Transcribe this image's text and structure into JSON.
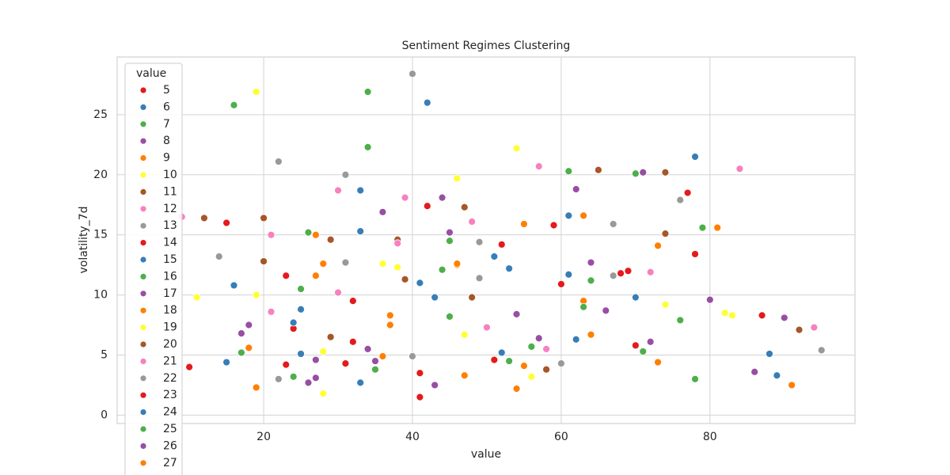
{
  "chart_data": {
    "type": "scatter",
    "title": "Sentiment Regimes Clustering",
    "xlabel": "value",
    "ylabel": "volatility_7d",
    "legend_title": "value",
    "xlim": [
      0.3,
      99.5
    ],
    "ylim": [
      -0.7,
      29.8
    ],
    "xticks": [
      20,
      40,
      60,
      80
    ],
    "yticks": [
      0,
      5,
      10,
      15,
      20,
      25
    ],
    "grid": true,
    "legend": "upper left",
    "series": [
      {
        "name": "5",
        "color": "#e41a1c",
        "x": [
          15,
          23,
          32,
          41,
          59,
          68,
          77
        ],
        "values": [
          16,
          4.2,
          6.1,
          3.5,
          15.8,
          11.8,
          18.5
        ]
      },
      {
        "name": "6",
        "color": "#377eb8",
        "x": [
          16,
          25,
          33,
          42,
          51,
          61,
          78
        ],
        "values": [
          10.8,
          5.1,
          18.7,
          26,
          13.2,
          16.6,
          21.5
        ]
      },
      {
        "name": "7",
        "color": "#4daf4a",
        "x": [
          16,
          24,
          34,
          44,
          61,
          70,
          79
        ],
        "values": [
          25.8,
          3.2,
          26.9,
          12.1,
          20.3,
          20.1,
          15.6
        ]
      },
      {
        "name": "8",
        "color": "#984ea3",
        "x": [
          18,
          27,
          36,
          44,
          62,
          71,
          90
        ],
        "values": [
          7.5,
          4.6,
          16.9,
          18.1,
          18.8,
          20.2,
          8.1
        ]
      },
      {
        "name": "9",
        "color": "#ff7f00",
        "x": [
          18,
          27,
          37,
          47,
          55,
          63,
          81
        ],
        "values": [
          5.6,
          15,
          8.3,
          3.3,
          15.9,
          16.6,
          15.6
        ]
      },
      {
        "name": "10",
        "color": "#ffff33",
        "x": [
          11,
          19,
          28,
          36,
          46,
          54,
          83
        ],
        "values": [
          9.8,
          26.9,
          5.3,
          12.6,
          19.7,
          22.2,
          8.3
        ]
      },
      {
        "name": "11",
        "color": "#a65628",
        "x": [
          12,
          20,
          29,
          38,
          47,
          65,
          74
        ],
        "values": [
          16.4,
          16.4,
          14.6,
          14.6,
          17.3,
          20.4,
          20.2
        ]
      },
      {
        "name": "12",
        "color": "#f781bf",
        "x": [
          9,
          21,
          30,
          39,
          48,
          57,
          84
        ],
        "values": [
          16.5,
          15,
          18.7,
          18.1,
          16.1,
          20.7,
          20.5
        ]
      },
      {
        "name": "13",
        "color": "#999999",
        "x": [
          14,
          22,
          31,
          40,
          49,
          67,
          76
        ],
        "values": [
          13.2,
          21.1,
          20,
          28.4,
          14.4,
          15.9,
          17.9
        ]
      },
      {
        "name": "14",
        "color": "#e41a1c",
        "x": [
          10,
          24,
          32,
          42,
          52,
          69,
          78
        ],
        "values": [
          4,
          7.2,
          9.5,
          17.4,
          14.2,
          12,
          13.4
        ]
      },
      {
        "name": "15",
        "color": "#377eb8",
        "x": [
          15,
          25,
          33,
          43,
          53,
          62,
          88
        ],
        "values": [
          4.4,
          8.8,
          15.3,
          9.8,
          12.2,
          6.3,
          5.1
        ]
      },
      {
        "name": "16",
        "color": "#4daf4a",
        "x": [
          17,
          26,
          35,
          45,
          56,
          64,
          76
        ],
        "values": [
          5.2,
          15.2,
          3.8,
          8.2,
          5.7,
          11.2,
          7.9
        ]
      },
      {
        "name": "17",
        "color": "#984ea3",
        "x": [
          17,
          27,
          35,
          43,
          57,
          66,
          80
        ],
        "values": [
          6.8,
          3.1,
          4.5,
          2.5,
          6.4,
          8.7,
          9.6
        ]
      },
      {
        "name": "18",
        "color": "#ff7f00",
        "x": [
          19,
          28,
          37,
          46,
          55,
          63,
          73
        ],
        "values": [
          2.3,
          12.6,
          7.5,
          12.5,
          4.1,
          9.5,
          14.1
        ]
      },
      {
        "name": "19",
        "color": "#ffff33",
        "x": [
          19,
          28,
          38,
          47,
          56,
          74,
          82
        ],
        "values": [
          10,
          1.8,
          12.3,
          6.7,
          3.2,
          9.2,
          8.5
        ]
      },
      {
        "name": "20",
        "color": "#a65628",
        "x": [
          20,
          29,
          39,
          48,
          58,
          74,
          92
        ],
        "values": [
          12.8,
          6.5,
          11.3,
          9.8,
          3.8,
          15.1,
          7.1
        ]
      },
      {
        "name": "21",
        "color": "#f781bf",
        "x": [
          21,
          30,
          38,
          50,
          58,
          72,
          94
        ],
        "values": [
          8.6,
          10.2,
          14.3,
          7.3,
          5.5,
          11.9,
          7.3
        ]
      },
      {
        "name": "22",
        "color": "#999999",
        "x": [
          22,
          31,
          40,
          49,
          60,
          67,
          95
        ],
        "values": [
          3,
          12.7,
          4.9,
          11.4,
          4.3,
          11.6,
          5.4
        ]
      },
      {
        "name": "23",
        "color": "#e41a1c",
        "x": [
          23,
          31,
          41,
          51,
          60,
          70,
          87
        ],
        "values": [
          11.6,
          4.3,
          1.5,
          4.6,
          10.9,
          5.8,
          8.3
        ]
      },
      {
        "name": "24",
        "color": "#377eb8",
        "x": [
          24,
          33,
          41,
          52,
          61,
          70,
          89
        ],
        "values": [
          7.7,
          2.7,
          11,
          5.2,
          11.7,
          9.8,
          3.3
        ]
      },
      {
        "name": "25",
        "color": "#4daf4a",
        "x": [
          25,
          34,
          45,
          53,
          63,
          71,
          78
        ],
        "values": [
          10.5,
          22.3,
          14.5,
          4.5,
          9,
          5.3,
          3
        ]
      },
      {
        "name": "26",
        "color": "#984ea3",
        "x": [
          26,
          34,
          45,
          54,
          64,
          72,
          86
        ],
        "values": [
          2.7,
          5.5,
          15.2,
          8.4,
          12.7,
          6.1,
          3.6
        ]
      },
      {
        "name": "27",
        "color": "#ff7f00",
        "x": [
          27,
          36,
          46,
          54,
          64,
          73,
          91
        ],
        "values": [
          11.6,
          4.9,
          12.6,
          2.2,
          6.7,
          4.4,
          2.5
        ]
      }
    ]
  }
}
